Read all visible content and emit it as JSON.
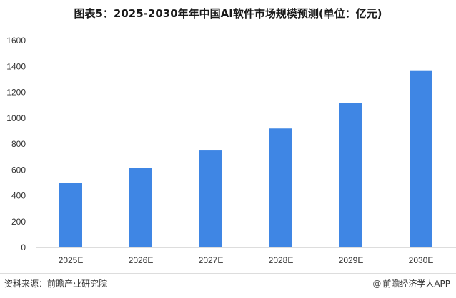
{
  "title": "图表5：2025-2030年年中国AI软件市场规模预测(单位：亿元)",
  "source": "资料来源：前瞻产业研究院",
  "brand": {
    "logo_icon": "at-sign",
    "logo_glyph": "@",
    "text": "前瞻经济学人APP"
  },
  "colors": {
    "bar": "#3f86e4",
    "axis": "#bbbbbb"
  },
  "chart_data": {
    "type": "bar",
    "title": "图表5：2025-2030年年中国AI软件市场规模预测(单位：亿元)",
    "categories": [
      "2025E",
      "2026E",
      "2027E",
      "2028E",
      "2029E",
      "2030E"
    ],
    "values": [
      500,
      615,
      750,
      920,
      1120,
      1370
    ],
    "ylim": [
      0,
      1600
    ],
    "yticks": [
      0,
      200,
      400,
      600,
      800,
      1000,
      1200,
      1400,
      1600
    ],
    "grid": false,
    "legend": "none"
  }
}
